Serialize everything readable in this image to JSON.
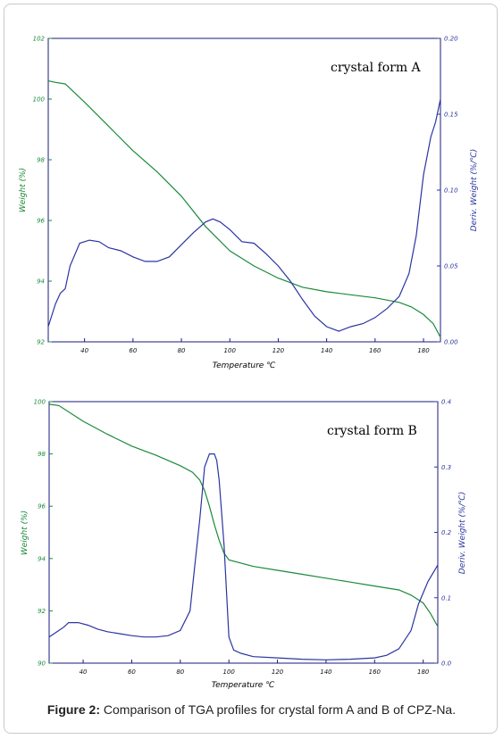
{
  "colors": {
    "weight": "#1a8a3a",
    "deriv": "#2a35a0",
    "axis": "#1a1a80"
  },
  "caption": {
    "label": "Figure 2:",
    "text": " Comparison of TGA profiles for crystal form A and B of CPZ-Na."
  },
  "chart_data": [
    {
      "type": "line",
      "annotation": "crystal form A",
      "xlabel": "Temperature ℃",
      "ylabel_left": "Weight (%)",
      "ylabel_right": "Deriv. Weight (%/℃)",
      "xlim": [
        25,
        187
      ],
      "ylim_left": [
        92,
        102
      ],
      "ylim_right": [
        0.0,
        0.2
      ],
      "x_ticks": [
        40,
        60,
        80,
        100,
        120,
        140,
        160,
        180
      ],
      "x_tick_labels": [
        "40",
        "60",
        "80",
        "100",
        "120",
        "140",
        "160",
        "180"
      ],
      "yl_ticks": [
        92,
        94,
        96,
        98,
        100,
        102
      ],
      "yl_tick_labels": [
        "92",
        "94",
        "96",
        "98",
        "100",
        "102"
      ],
      "yr_ticks": [
        0.0,
        0.05,
        0.1,
        0.15,
        0.2
      ],
      "yr_tick_labels": [
        "0.00",
        "0.05",
        "0.10",
        "0.15",
        "0.20"
      ],
      "series": [
        {
          "axis": "left",
          "x": [
            25,
            28,
            32,
            40,
            50,
            60,
            70,
            80,
            90,
            100,
            110,
            120,
            130,
            140,
            150,
            160,
            170,
            175,
            180,
            184,
            187
          ],
          "y": [
            100.6,
            100.55,
            100.5,
            99.9,
            99.1,
            98.3,
            97.6,
            96.8,
            95.8,
            95.0,
            94.5,
            94.1,
            93.8,
            93.65,
            93.55,
            93.45,
            93.3,
            93.15,
            92.9,
            92.6,
            92.15
          ]
        },
        {
          "axis": "right",
          "x": [
            25,
            28,
            30,
            32,
            34,
            38,
            42,
            46,
            50,
            55,
            60,
            65,
            70,
            75,
            80,
            85,
            90,
            93,
            96,
            100,
            105,
            110,
            115,
            120,
            125,
            130,
            135,
            140,
            145,
            150,
            155,
            160,
            165,
            170,
            174,
            177,
            180,
            183,
            185,
            187
          ],
          "y": [
            0.01,
            0.025,
            0.032,
            0.035,
            0.05,
            0.065,
            0.067,
            0.066,
            0.062,
            0.06,
            0.056,
            0.053,
            0.053,
            0.056,
            0.064,
            0.072,
            0.079,
            0.081,
            0.079,
            0.074,
            0.066,
            0.065,
            0.058,
            0.05,
            0.04,
            0.028,
            0.017,
            0.01,
            0.007,
            0.01,
            0.012,
            0.016,
            0.022,
            0.03,
            0.045,
            0.07,
            0.11,
            0.135,
            0.145,
            0.16
          ]
        }
      ]
    },
    {
      "type": "line",
      "annotation": "crystal form B",
      "xlabel": "Temperature ℃",
      "ylabel_left": "Weight (%)",
      "ylabel_right": "Deriv. Weight (%/℃)",
      "xlim": [
        26,
        186
      ],
      "ylim_left": [
        90,
        100
      ],
      "ylim_right": [
        0.0,
        0.4
      ],
      "x_ticks": [
        40,
        60,
        80,
        100,
        120,
        140,
        160,
        180
      ],
      "x_tick_labels": [
        "40",
        "60",
        "80",
        "100",
        "120",
        "140",
        "160",
        "180"
      ],
      "yl_ticks": [
        90,
        92,
        94,
        96,
        98,
        100
      ],
      "yl_tick_labels": [
        "90",
        "92",
        "94",
        "96",
        "98",
        "100"
      ],
      "yr_ticks": [
        0.0,
        0.1,
        0.2,
        0.3,
        0.4
      ],
      "yr_tick_labels": [
        "0.0",
        "0.1",
        "0.2",
        "0.3",
        "0.4"
      ],
      "series": [
        {
          "axis": "left",
          "x": [
            26,
            30,
            40,
            50,
            60,
            70,
            80,
            85,
            88,
            90,
            92,
            94,
            96,
            98,
            100,
            110,
            120,
            130,
            140,
            150,
            160,
            170,
            175,
            180,
            183,
            186
          ],
          "y": [
            99.9,
            99.85,
            99.25,
            98.75,
            98.3,
            97.95,
            97.55,
            97.3,
            97.0,
            96.6,
            96.0,
            95.3,
            94.7,
            94.2,
            93.95,
            93.7,
            93.55,
            93.4,
            93.25,
            93.1,
            92.95,
            92.8,
            92.6,
            92.3,
            91.9,
            91.4
          ]
        },
        {
          "axis": "right",
          "x": [
            26,
            30,
            32,
            34,
            38,
            42,
            46,
            50,
            55,
            60,
            65,
            70,
            75,
            80,
            84,
            86,
            88,
            90,
            92,
            94,
            95,
            96,
            98,
            100,
            102,
            105,
            110,
            120,
            130,
            140,
            150,
            160,
            165,
            170,
            175,
            178,
            182,
            186
          ],
          "y": [
            0.04,
            0.05,
            0.055,
            0.062,
            0.062,
            0.058,
            0.052,
            0.048,
            0.045,
            0.042,
            0.04,
            0.04,
            0.042,
            0.05,
            0.08,
            0.15,
            0.22,
            0.3,
            0.32,
            0.32,
            0.31,
            0.28,
            0.18,
            0.04,
            0.02,
            0.015,
            0.01,
            0.008,
            0.006,
            0.005,
            0.006,
            0.008,
            0.012,
            0.022,
            0.05,
            0.09,
            0.125,
            0.15
          ]
        }
      ]
    }
  ]
}
